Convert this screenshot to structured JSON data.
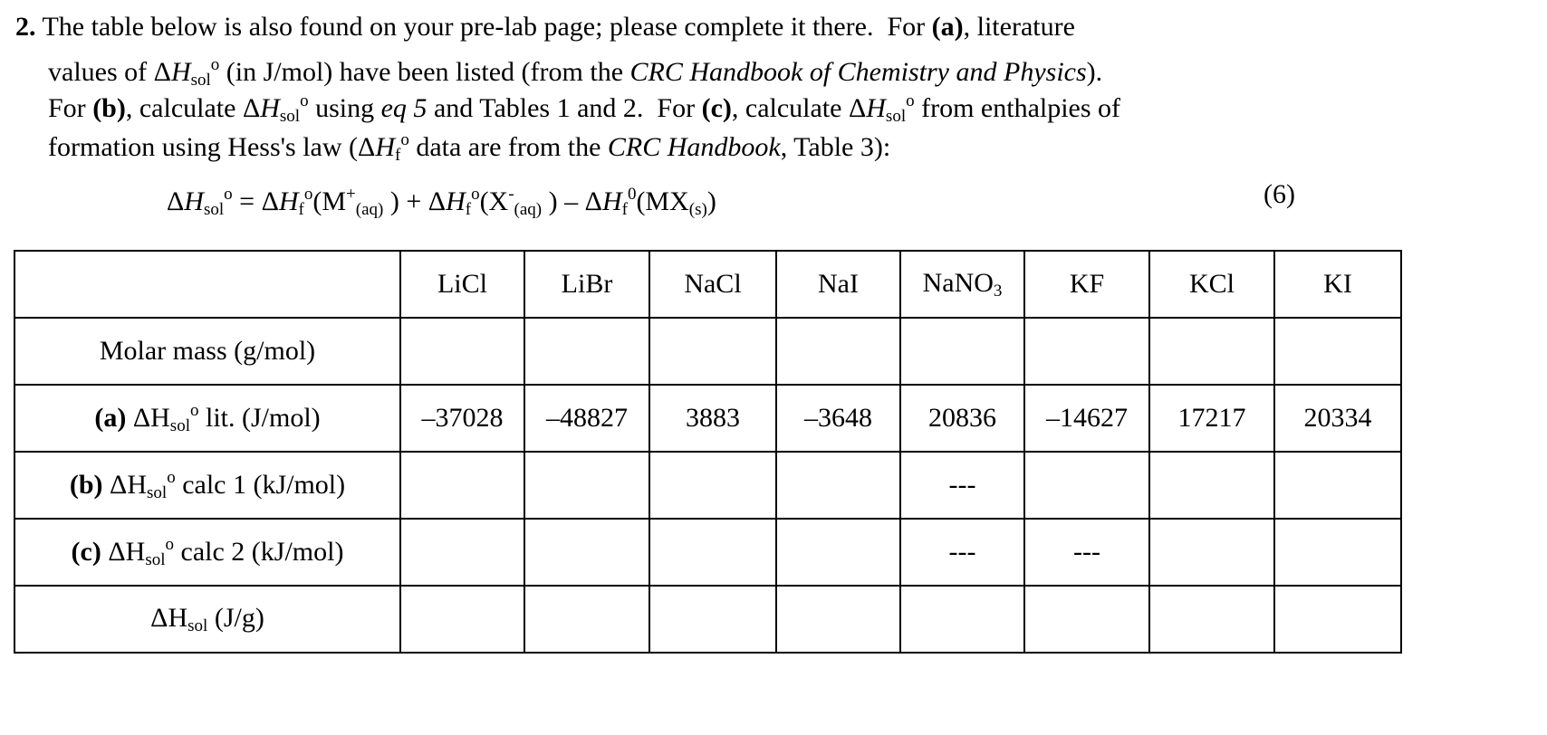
{
  "question": {
    "lines": [
      [
        [
          "b",
          "2."
        ],
        [
          "n",
          " The table below is also found on your pre-lab page; please complete it there.  For "
        ],
        [
          "b",
          "(a)"
        ],
        [
          "n",
          ", literature"
        ]
      ],
      [
        [
          "n",
          "values of Δ"
        ],
        [
          "i",
          "H"
        ],
        [
          "sub",
          "sol"
        ],
        [
          "sup",
          "o"
        ],
        [
          "n",
          " (in J/mol) have been listed (from the "
        ],
        [
          "i",
          "CRC Handbook of Chemistry and Physics"
        ],
        [
          "n",
          ")."
        ]
      ],
      [
        [
          "n",
          "For "
        ],
        [
          "b",
          "(b)"
        ],
        [
          "n",
          ", calculate Δ"
        ],
        [
          "i",
          "H"
        ],
        [
          "sub",
          "sol"
        ],
        [
          "sup",
          "o"
        ],
        [
          "n",
          " using "
        ],
        [
          "i",
          "eq 5"
        ],
        [
          "n",
          " and Tables 1 and 2.  For "
        ],
        [
          "b",
          "(c)"
        ],
        [
          "n",
          ", calculate Δ"
        ],
        [
          "i",
          "H"
        ],
        [
          "sub",
          "sol"
        ],
        [
          "sup",
          "o"
        ],
        [
          "n",
          " from enthalpies of"
        ]
      ],
      [
        [
          "n",
          "formation using Hess's law (Δ"
        ],
        [
          "i",
          "H"
        ],
        [
          "sub",
          "f"
        ],
        [
          "sup",
          "o"
        ],
        [
          "n",
          " data are from the "
        ],
        [
          "i",
          "CRC Handbook"
        ],
        [
          "n",
          ", Table 3):"
        ]
      ]
    ],
    "equation": [
      [
        "n",
        "Δ"
      ],
      [
        "i",
        "H"
      ],
      [
        "sub",
        "sol"
      ],
      [
        "sup",
        "o"
      ],
      [
        "n",
        " = Δ"
      ],
      [
        "i",
        "H"
      ],
      [
        "sub",
        "f"
      ],
      [
        "sup",
        "o"
      ],
      [
        "n",
        "(M"
      ],
      [
        "sup",
        "+"
      ],
      [
        "sub",
        "(aq)"
      ],
      [
        "n",
        " ) + Δ"
      ],
      [
        "i",
        "H"
      ],
      [
        "sub",
        "f"
      ],
      [
        "sup",
        "o"
      ],
      [
        "n",
        "(X"
      ],
      [
        "sup",
        "-"
      ],
      [
        "sub",
        "(aq)"
      ],
      [
        "n",
        " ) – Δ"
      ],
      [
        "i",
        "H"
      ],
      [
        "sub",
        "f"
      ],
      [
        "sup",
        "0"
      ],
      [
        "n",
        "(MX"
      ],
      [
        "sub",
        "(s)"
      ],
      [
        "n",
        ")"
      ]
    ],
    "equation_number": "(6)"
  },
  "table": {
    "columns": [
      [
        [
          "n",
          "LiCl"
        ]
      ],
      [
        [
          "n",
          "LiBr"
        ]
      ],
      [
        [
          "n",
          "NaCl"
        ]
      ],
      [
        [
          "n",
          "NaI"
        ]
      ],
      [
        [
          "n",
          "NaNO"
        ],
        [
          "sub",
          "3"
        ]
      ],
      [
        [
          "n",
          "KF"
        ]
      ],
      [
        [
          "n",
          "KCl"
        ]
      ],
      [
        [
          "n",
          "KI"
        ]
      ]
    ],
    "rows": [
      {
        "label": [
          [
            "n",
            "Molar mass (g/mol)"
          ]
        ],
        "cells": [
          "",
          "",
          "",
          "",
          "",
          "",
          "",
          ""
        ]
      },
      {
        "label": [
          [
            "b",
            "(a)"
          ],
          [
            "n",
            " ΔH"
          ],
          [
            "sub",
            "sol"
          ],
          [
            "sup",
            "o"
          ],
          [
            "n",
            " lit. (J/mol)"
          ]
        ],
        "cells": [
          "–37028",
          "–48827",
          "3883",
          "–3648",
          "20836",
          "–14627",
          "17217",
          "20334"
        ]
      },
      {
        "label": [
          [
            "b",
            "(b)"
          ],
          [
            "n",
            " ΔH"
          ],
          [
            "sub",
            "sol"
          ],
          [
            "sup",
            "o"
          ],
          [
            "n",
            " calc 1 (kJ/mol)"
          ]
        ],
        "cells": [
          "",
          "",
          "",
          "",
          "---",
          "",
          "",
          ""
        ]
      },
      {
        "label": [
          [
            "b",
            "(c)"
          ],
          [
            "n",
            " ΔH"
          ],
          [
            "sub",
            "sol"
          ],
          [
            "sup",
            "o"
          ],
          [
            "n",
            " calc 2 (kJ/mol)"
          ]
        ],
        "cells": [
          "",
          "",
          "",
          "",
          "---",
          "---",
          "",
          ""
        ]
      },
      {
        "label": [
          [
            "n",
            "ΔH"
          ],
          [
            "sub",
            "sol"
          ],
          [
            "n",
            " (J/g)"
          ]
        ],
        "cells": [
          "",
          "",
          "",
          "",
          "",
          "",
          "",
          ""
        ]
      }
    ]
  }
}
